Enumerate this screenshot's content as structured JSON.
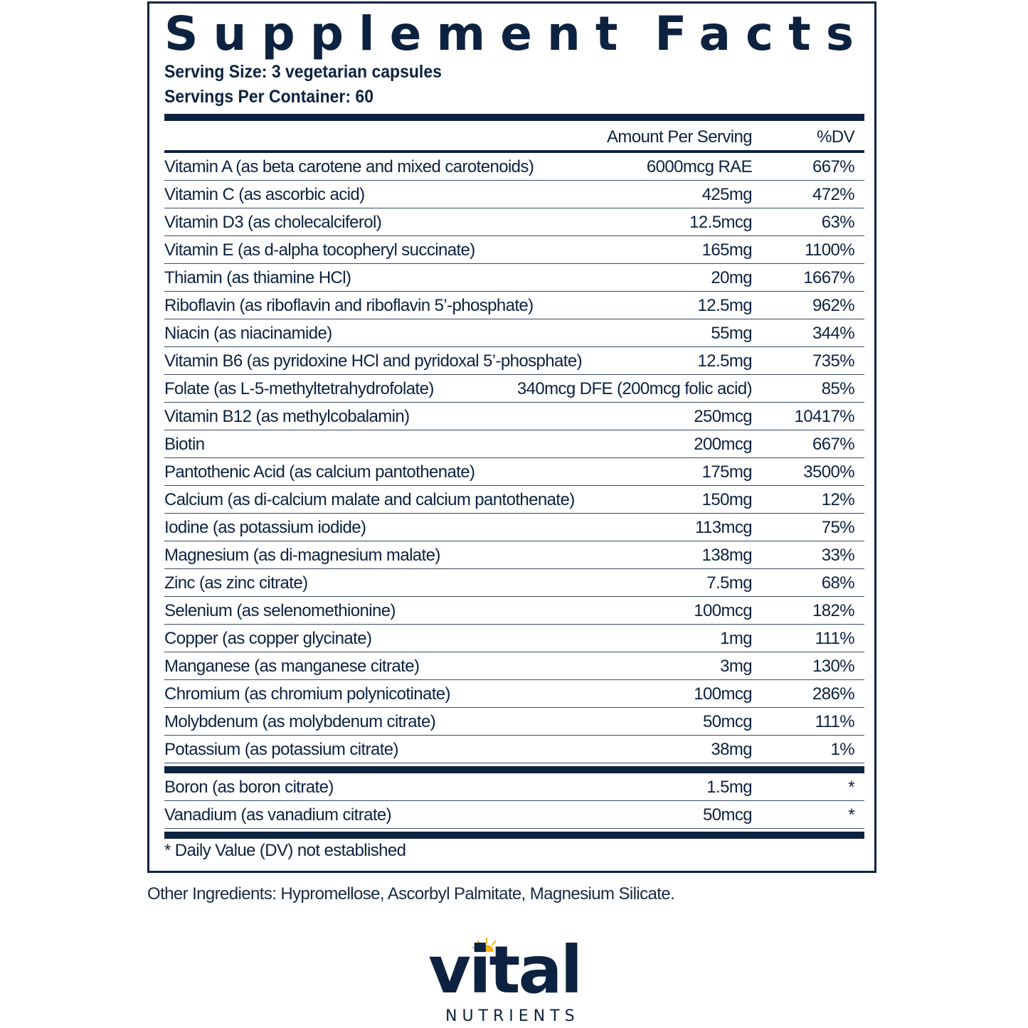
{
  "panel": {
    "title_word1": "Supplement",
    "title_word2": "Facts",
    "serving_size": "Serving Size: 3 vegetarian capsules",
    "servings_per_container": "Servings Per Container: 60",
    "col_amount": "Amount Per Serving",
    "col_dv": "%DV",
    "rows": [
      {
        "name": "Vitamin A (as beta carotene and mixed carotenoids)",
        "amount": "6000mcg RAE",
        "dv": "667%"
      },
      {
        "name": "Vitamin C (as ascorbic acid)",
        "amount": "425mg",
        "dv": "472%"
      },
      {
        "name": "Vitamin D3 (as cholecalciferol)",
        "amount": "12.5mcg",
        "dv": "63%"
      },
      {
        "name": "Vitamin E (as d-alpha tocopheryl succinate)",
        "amount": "165mg",
        "dv": "1100%"
      },
      {
        "name": "Thiamin (as thiamine HCl)",
        "amount": "20mg",
        "dv": "1667%"
      },
      {
        "name": "Riboflavin (as riboflavin and riboflavin 5’-phosphate)",
        "amount": "12.5mg",
        "dv": "962%"
      },
      {
        "name": "Niacin (as niacinamide)",
        "amount": "55mg",
        "dv": "344%"
      },
      {
        "name": "Vitamin B6 (as pyridoxine HCl and pyridoxal 5’-phosphate)",
        "amount": "12.5mg",
        "dv": "735%"
      },
      {
        "name": "Folate (as L-5-methyltetrahydrofolate)",
        "amount": "340mcg DFE (200mcg folic acid)",
        "dv": "85%"
      },
      {
        "name": "Vitamin B12 (as methylcobalamin)",
        "amount": "250mcg",
        "dv": "10417%"
      },
      {
        "name": "Biotin",
        "amount": "200mcg",
        "dv": "667%"
      },
      {
        "name": "Pantothenic Acid (as calcium pantothenate)",
        "amount": "175mg",
        "dv": "3500%"
      },
      {
        "name": "Calcium (as di-calcium malate and calcium pantothenate)",
        "amount": "150mg",
        "dv": "12%"
      },
      {
        "name": "Iodine (as potassium iodide)",
        "amount": "113mcg",
        "dv": "75%"
      },
      {
        "name": "Magnesium (as di-magnesium malate)",
        "amount": "138mg",
        "dv": "33%"
      },
      {
        "name": "Zinc (as zinc citrate)",
        "amount": "7.5mg",
        "dv": "68%"
      },
      {
        "name": "Selenium (as selenomethionine)",
        "amount": "100mcg",
        "dv": "182%"
      },
      {
        "name": "Copper (as copper glycinate)",
        "amount": "1mg",
        "dv": "111%"
      },
      {
        "name": "Manganese (as manganese citrate)",
        "amount": "3mg",
        "dv": "130%"
      },
      {
        "name": "Chromium (as chromium polynicotinate)",
        "amount": "100mcg",
        "dv": "286%"
      },
      {
        "name": "Molybdenum (as molybdenum citrate)",
        "amount": "50mcg",
        "dv": "111%"
      },
      {
        "name": "Potassium (as potassium citrate)",
        "amount": "38mg",
        "dv": "1%"
      }
    ],
    "rows_no_dv": [
      {
        "name": "Boron (as boron citrate)",
        "amount": "1.5mg",
        "dv": "*"
      },
      {
        "name": "Vanadium (as vanadium citrate)",
        "amount": "50mcg",
        "dv": "*"
      }
    ],
    "footnote": "* Daily Value (DV) not established"
  },
  "other_ingredients": "Other Ingredients: Hypromellose, Ascorbyl Palmitate, Magnesium Silicate.",
  "logo": {
    "word": "vital",
    "sub": "NUTRIENTS",
    "icon": "sun-icon",
    "brand_color": "#0d2240",
    "accent_color": "#f2b41c"
  }
}
